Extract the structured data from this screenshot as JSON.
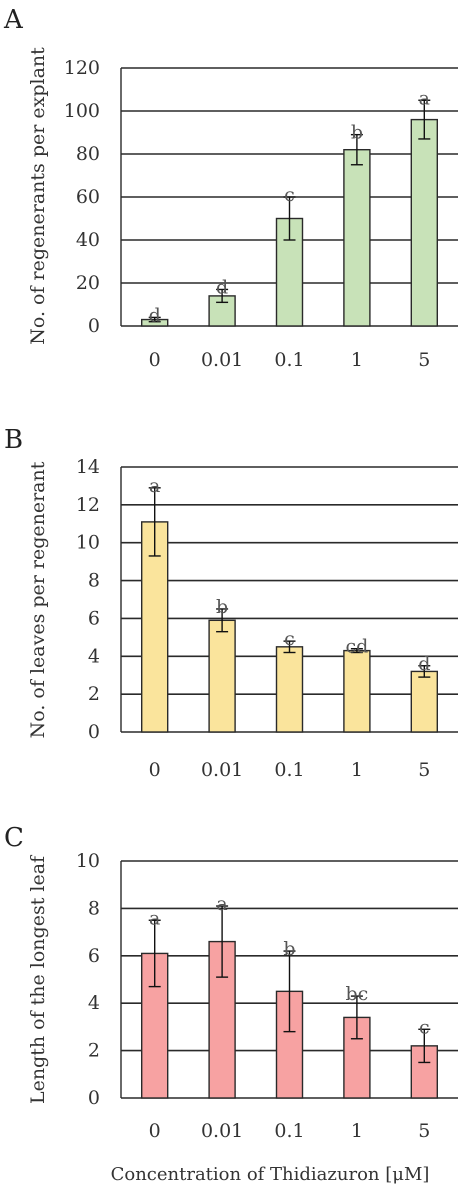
{
  "chart_data": [
    {
      "panel": "A",
      "type": "bar",
      "ylabel": "No. of regenerants per explant",
      "categories": [
        "0",
        "0.01",
        "0.1",
        "1",
        "5"
      ],
      "values": [
        3,
        14,
        50,
        82,
        96
      ],
      "errors": [
        1,
        3,
        10,
        7,
        9
      ],
      "letters": [
        "d",
        "d",
        "c",
        "b",
        "a"
      ],
      "ylim": [
        0,
        120
      ],
      "yticks": [
        0,
        20,
        40,
        60,
        80,
        100,
        120
      ],
      "bar_color": "#c8e2b8",
      "grid": true
    },
    {
      "panel": "B",
      "type": "bar",
      "ylabel": "No. of leaves per regenerant",
      "categories": [
        "0",
        "0.01",
        "0.1",
        "1",
        "5"
      ],
      "values": [
        11.1,
        5.9,
        4.5,
        4.3,
        3.2
      ],
      "errors": [
        1.8,
        0.6,
        0.3,
        0.1,
        0.3
      ],
      "letters": [
        "a",
        "b",
        "c",
        "cd",
        "d"
      ],
      "ylim": [
        0,
        14
      ],
      "yticks": [
        0,
        2,
        4,
        6,
        8,
        10,
        12,
        14
      ],
      "bar_color": "#fae49c",
      "grid": true
    },
    {
      "panel": "C",
      "type": "bar",
      "ylabel": "Length of the longest leaf",
      "categories": [
        "0",
        "0.01",
        "0.1",
        "1",
        "5"
      ],
      "values": [
        6.1,
        6.6,
        4.5,
        3.4,
        2.2
      ],
      "errors": [
        1.4,
        1.5,
        1.7,
        0.9,
        0.7
      ],
      "letters": [
        "a",
        "a",
        "b",
        "bc",
        "c"
      ],
      "ylim": [
        0,
        10
      ],
      "yticks": [
        0,
        2,
        4,
        6,
        8,
        10
      ],
      "bar_color": "#f7a2a2",
      "grid": true
    }
  ],
  "xlabel": "Concentration of Thidiazuron [μM]"
}
